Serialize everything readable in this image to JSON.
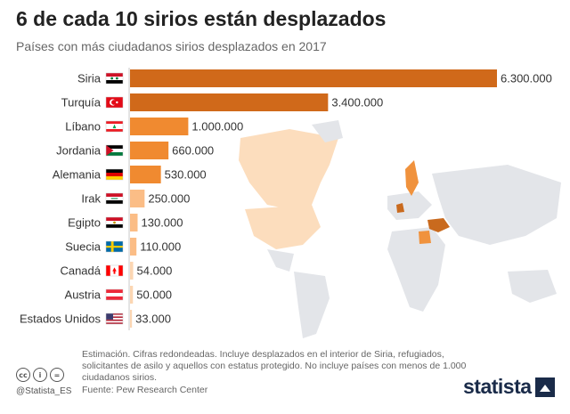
{
  "header": {
    "title": "6 de cada 10 sirios están desplazados",
    "subtitle": "Países con más ciudadanos sirios desplazados en 2017"
  },
  "chart_data": {
    "type": "bar",
    "orientation": "horizontal",
    "categories": [
      "Siria",
      "Turquía",
      "Líbano",
      "Jordania",
      "Alemania",
      "Irak",
      "Egipto",
      "Suecia",
      "Canadá",
      "Austria",
      "Estados Unidos"
    ],
    "values": [
      6300000,
      3400000,
      1000000,
      660000,
      530000,
      250000,
      130000,
      110000,
      54000,
      50000,
      33000
    ],
    "value_labels": [
      "6.300.000",
      "3.400.000",
      "1.000.000",
      "660.000",
      "530.000",
      "250.000",
      "130.000",
      "110.000",
      "54.000",
      "50.000",
      "33.000"
    ],
    "flags": [
      "syria",
      "turkey",
      "lebanon",
      "jordan",
      "germany",
      "iraq",
      "egypt",
      "sweden",
      "canada",
      "austria",
      "usa"
    ],
    "colors": {
      "top": "#d0691a",
      "mid": "#f08a30",
      "low": "#fbbd86",
      "lowest": "#fcd6b2"
    },
    "xlim": [
      0,
      6300000
    ],
    "title": "",
    "xlabel": "",
    "ylabel": ""
  },
  "background_map": {
    "description_icon": "world-map-icon",
    "land_color": "#e3e5e9",
    "highlight_colors": [
      "#c96a1e",
      "#f0923d",
      "#f8c694",
      "#fcddbd"
    ]
  },
  "footer": {
    "note": "Estimación. Cifras redondeadas. Incluye desplazados en el interior de Siria, refugiados, solicitantes de asilo y aquellos con estatus protegido. No incluye países con menos de 1.000 ciudadanos sirios.",
    "source": "Fuente: Pew Research Center",
    "handle": "@Statista_ES",
    "brand": "statista",
    "license_icons": [
      "cc-icon",
      "by-icon",
      "equals-icon"
    ]
  }
}
